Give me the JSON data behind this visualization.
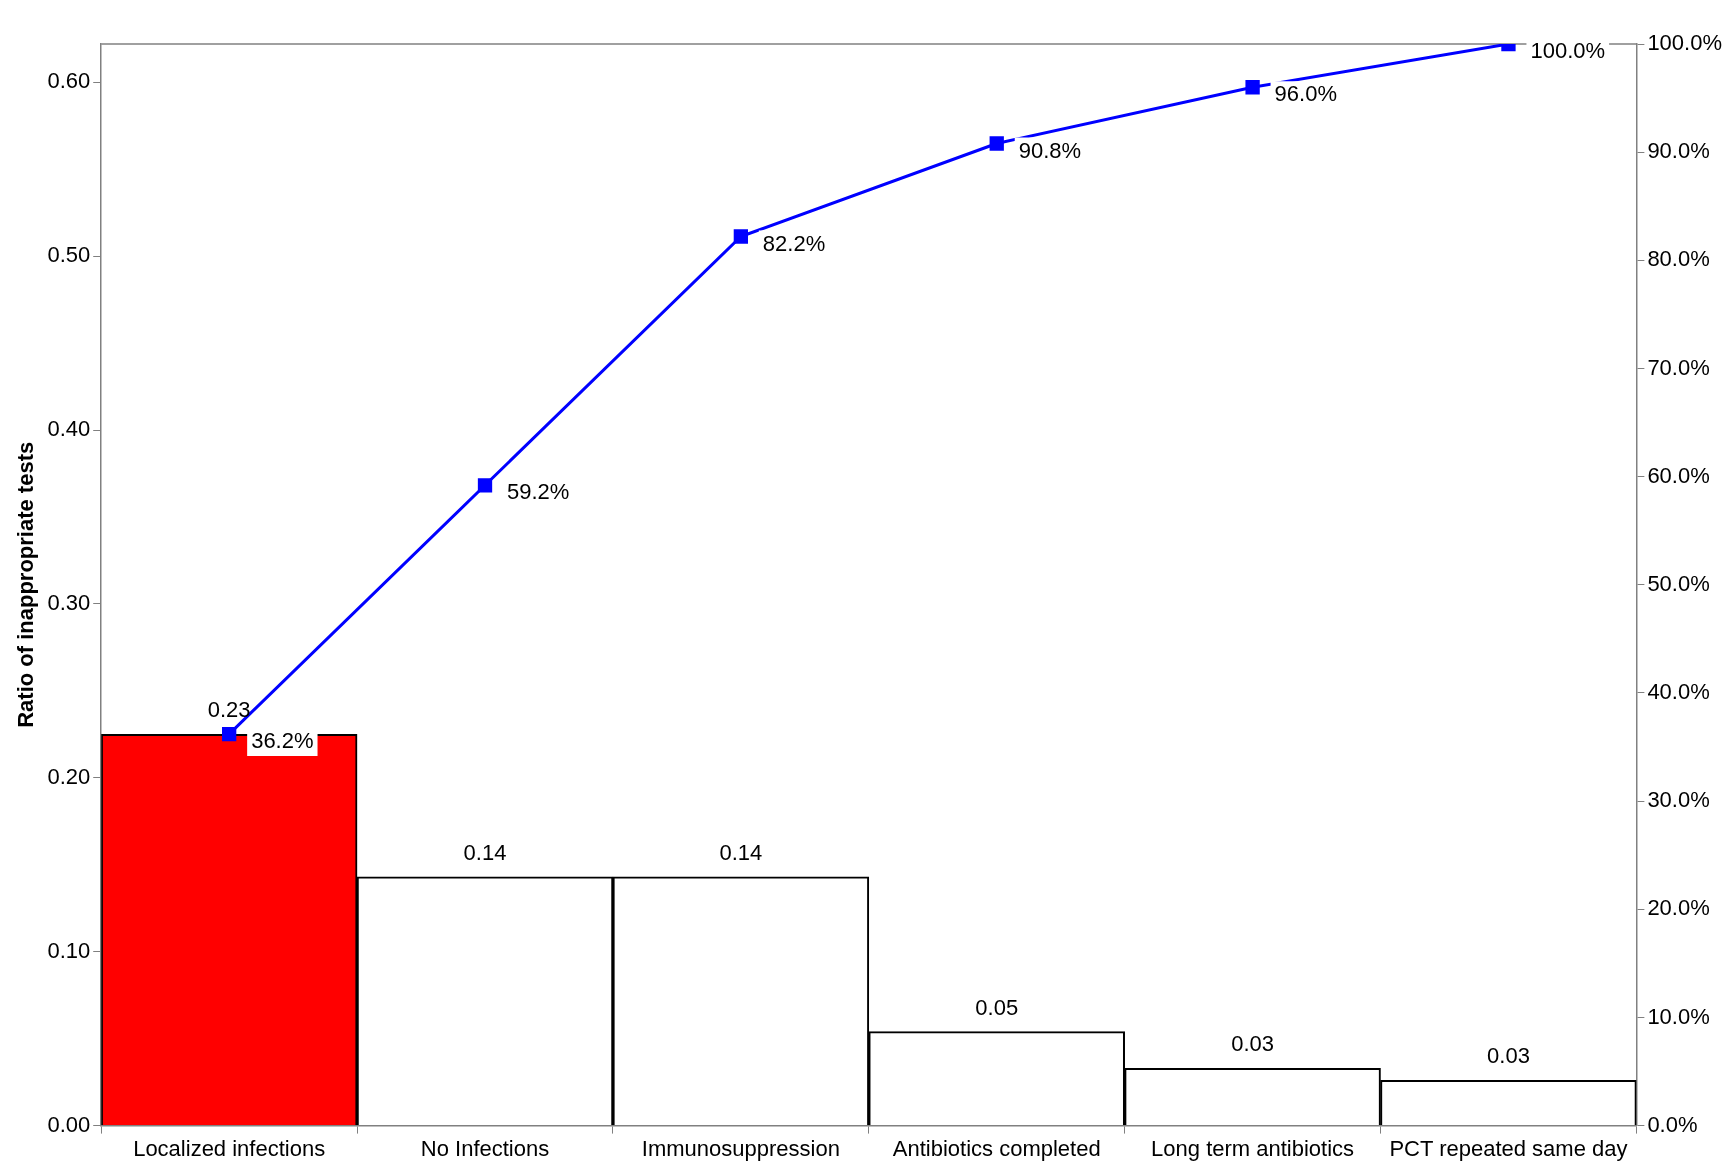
{
  "chart_data": {
    "type": "bar",
    "ylabel": "Ratio of inappropriate tests",
    "categories": [
      "Localized infections",
      "No Infections",
      "Immunosuppression",
      "Antibiotics completed",
      "Long term antibiotics",
      "PCT repeated same day"
    ],
    "legend": false,
    "grid": false,
    "ylim": [
      0,
      0.622
    ],
    "yticks": [
      {
        "value": 0,
        "label": "0.00"
      },
      {
        "value": 0.1,
        "label": "0.10"
      },
      {
        "value": 0.2,
        "label": "0.20"
      },
      {
        "value": 0.3,
        "label": "0.30"
      },
      {
        "value": 0.4,
        "label": "0.40"
      },
      {
        "value": 0.5,
        "label": "0.50"
      },
      {
        "value": 0.6,
        "label": "0.60"
      }
    ],
    "y2lim": [
      0,
      100
    ],
    "y2ticks": [
      {
        "value": 0,
        "label": "0.0%"
      },
      {
        "value": 10,
        "label": "10.0%"
      },
      {
        "value": 20,
        "label": "20.0%"
      },
      {
        "value": 30,
        "label": "30.0%"
      },
      {
        "value": 40,
        "label": "40.0%"
      },
      {
        "value": 50,
        "label": "50.0%"
      },
      {
        "value": 60,
        "label": "60.0%"
      },
      {
        "value": 70,
        "label": "70.0%"
      },
      {
        "value": 80,
        "label": "80.0%"
      },
      {
        "value": 90,
        "label": "90.0%"
      },
      {
        "value": 100,
        "label": "100.0%"
      }
    ],
    "series": [
      {
        "colors": [
          "#ff0000",
          "#ffffff",
          "#ffffff",
          "#ffffff",
          "#ffffff",
          "#ffffff"
        ],
        "values": [
          0.225,
          0.143,
          0.143,
          0.054,
          0.033,
          0.026
        ],
        "value_labels": [
          "0.23",
          "0.14",
          "0.14",
          "0.05",
          "0.03",
          "0.03"
        ]
      },
      {
        "type": "line",
        "axis": "y2",
        "values": [
          36.2,
          59.2,
          82.2,
          90.8,
          96.0,
          100.0
        ],
        "color": "#0000ff",
        "marker": "square",
        "value_labels": [
          "36.2%",
          "59.2%",
          "82.2%",
          "90.8%",
          "96.0%",
          "100.0%"
        ]
      }
    ]
  }
}
